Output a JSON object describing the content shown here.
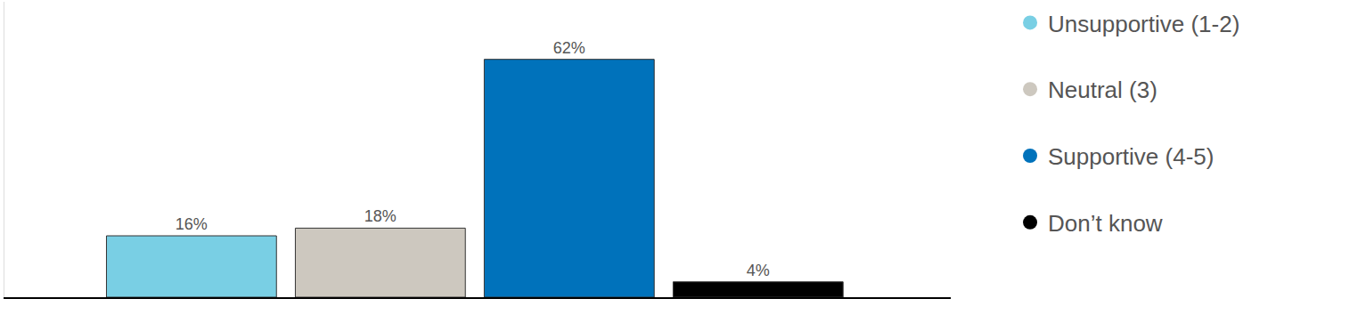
{
  "chart_data": {
    "type": "bar",
    "categories": [
      "Unsupportive (1-2)",
      "Neutral (3)",
      "Supportive (4-5)",
      "Don’t know"
    ],
    "values": [
      16,
      18,
      62,
      4
    ],
    "value_labels": [
      "16%",
      "18%",
      "62%",
      "4%"
    ],
    "colors": [
      "#79cfe4",
      "#cdc8bf",
      "#0072bb",
      "#000000"
    ],
    "ylim": [
      0,
      77
    ],
    "data_labels": true,
    "tick_labels": false,
    "legend": "right"
  }
}
